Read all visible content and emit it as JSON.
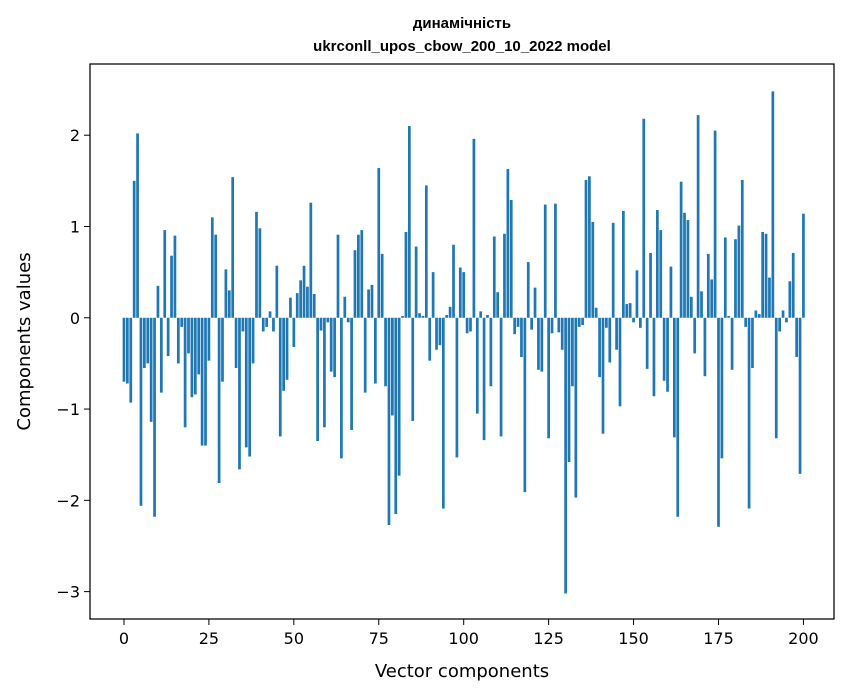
{
  "chart_data": {
    "type": "bar",
    "title_line1": "динамічність",
    "title_line2": "ukrconll_upos_cbow_200_10_2022 model",
    "xlabel": "Vector components",
    "ylabel": "Components values",
    "xlim": [
      -10,
      209
    ],
    "ylim": [
      -3.3,
      2.78
    ],
    "xticks": [
      0,
      25,
      50,
      75,
      100,
      125,
      150,
      175,
      200
    ],
    "xtick_labels": [
      "0",
      "25",
      "50",
      "75",
      "100",
      "125",
      "150",
      "175",
      "200"
    ],
    "yticks": [
      -3,
      -2,
      -1,
      0,
      1,
      2
    ],
    "ytick_labels": [
      "−3",
      "−2",
      "−1",
      "0",
      "1",
      "2"
    ],
    "bar_color": "#1f77b4",
    "grid": false,
    "values": [
      -0.7,
      -0.72,
      -0.93,
      1.5,
      2.02,
      -2.06,
      -0.55,
      -0.5,
      -1.14,
      -2.18,
      0.35,
      -0.82,
      0.96,
      -0.42,
      0.68,
      0.9,
      -0.5,
      -0.1,
      -1.2,
      -0.39,
      -0.87,
      -0.84,
      -0.62,
      -1.4,
      -1.4,
      -0.47,
      1.1,
      0.91,
      -1.81,
      -0.7,
      0.53,
      0.3,
      1.54,
      -0.55,
      -1.66,
      -0.15,
      -1.42,
      -1.52,
      -0.5,
      1.16,
      0.98,
      -0.15,
      -0.1,
      0.07,
      -0.15,
      0.57,
      -1.3,
      -0.8,
      -0.68,
      0.22,
      -0.32,
      0.27,
      0.41,
      0.57,
      0.34,
      1.26,
      0.26,
      -1.35,
      -0.14,
      -1.2,
      -0.05,
      -0.59,
      -0.65,
      0.91,
      -1.54,
      0.23,
      -0.05,
      -1.23,
      0.74,
      0.91,
      0.96,
      -0.82,
      0.31,
      0.36,
      -0.72,
      1.64,
      0.7,
      -0.75,
      -2.27,
      -1.07,
      -2.15,
      -1.73,
      0.02,
      0.94,
      2.1,
      -1.13,
      0.78,
      0.05,
      0.02,
      1.45,
      -0.47,
      0.5,
      -0.35,
      -0.3,
      -2.09,
      0.03,
      0.12,
      0.8,
      -1.53,
      0.55,
      0.5,
      -0.17,
      -0.15,
      1.96,
      -1.05,
      0.07,
      -1.34,
      0.03,
      -0.75,
      0.89,
      0.28,
      -1.3,
      0.92,
      1.63,
      1.29,
      -0.18,
      -0.1,
      -0.43,
      -1.91,
      0.61,
      -0.13,
      0.33,
      -0.57,
      -0.59,
      1.24,
      -1.32,
      -0.17,
      1.25,
      -0.16,
      -0.35,
      -3.02,
      -1.58,
      -0.75,
      -1.97,
      -0.1,
      -0.08,
      1.51,
      1.55,
      1.05,
      0.11,
      -0.65,
      -1.27,
      -0.11,
      -0.49,
      1.04,
      -0.35,
      -0.97,
      1.17,
      0.15,
      0.16,
      -0.05,
      0.52,
      -0.11,
      2.18,
      -0.56,
      0.71,
      -0.86,
      1.18,
      0.96,
      -0.69,
      -0.81,
      0.56,
      -1.31,
      -2.18,
      1.49,
      1.15,
      1.07,
      0.23,
      -0.39,
      2.22,
      0.29,
      -0.64,
      0.7,
      0.42,
      2.05,
      -2.29,
      -1.54,
      0.88,
      0.02,
      -0.57,
      0.86,
      1.01,
      1.51,
      -0.1,
      -2.09,
      -0.55,
      0.08,
      0.04,
      0.94,
      0.92,
      0.44,
      2.48,
      -1.32,
      -0.15,
      0.08,
      -0.05,
      0.4,
      0.71,
      -0.43,
      -1.71,
      1.14
    ]
  }
}
